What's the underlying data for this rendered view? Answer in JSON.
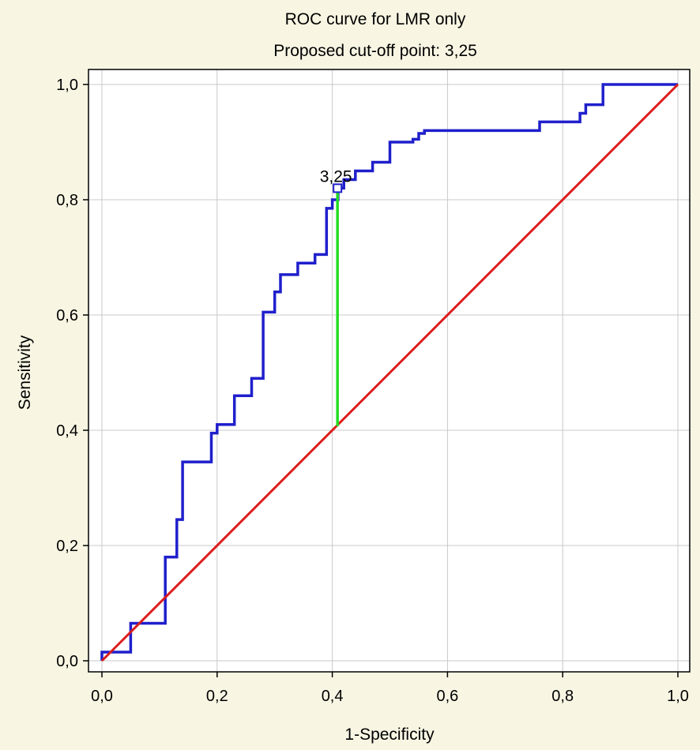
{
  "chart_data": {
    "type": "line",
    "title": "ROC curve for LMR only",
    "subtitle": "Proposed cut-off point: 3,25",
    "xlabel": "1-Specificity",
    "ylabel": "Sensitivity",
    "xlim": [
      0,
      1
    ],
    "ylim": [
      0,
      1
    ],
    "xticks": [
      0,
      0.2,
      0.4,
      0.6,
      0.8,
      1.0
    ],
    "yticks": [
      0,
      0.2,
      0.4,
      0.6,
      0.8,
      1.0
    ],
    "xtick_labels": [
      "0,0",
      "0,2",
      "0,4",
      "0,6",
      "0,8",
      "1,0"
    ],
    "ytick_labels": [
      "0,0",
      "0,2",
      "0,4",
      "0,6",
      "0,8",
      "1,0"
    ],
    "grid": true,
    "series": [
      {
        "color": "#1f1fcc",
        "x": [
          0,
          0,
          0.05,
          0.05,
          0.11,
          0.11,
          0.13,
          0.13,
          0.14,
          0.14,
          0.19,
          0.19,
          0.2,
          0.2,
          0.23,
          0.23,
          0.26,
          0.26,
          0.28,
          0.28,
          0.3,
          0.3,
          0.31,
          0.31,
          0.34,
          0.34,
          0.37,
          0.37,
          0.39,
          0.39,
          0.4,
          0.4,
          0.41,
          0.41,
          0.42,
          0.42,
          0.44,
          0.44,
          0.47,
          0.47,
          0.5,
          0.5,
          0.54,
          0.54,
          0.55,
          0.55,
          0.56,
          0.56,
          0.63,
          0.76,
          0.76,
          0.83,
          0.83,
          0.84,
          0.84,
          0.87,
          0.87,
          1.0
        ],
        "y": [
          0,
          0.015,
          0.015,
          0.065,
          0.065,
          0.18,
          0.18,
          0.245,
          0.245,
          0.345,
          0.345,
          0.395,
          0.395,
          0.41,
          0.41,
          0.46,
          0.46,
          0.49,
          0.49,
          0.605,
          0.605,
          0.64,
          0.64,
          0.67,
          0.67,
          0.69,
          0.69,
          0.705,
          0.705,
          0.785,
          0.785,
          0.8,
          0.8,
          0.82,
          0.82,
          0.835,
          0.835,
          0.85,
          0.85,
          0.865,
          0.865,
          0.9,
          0.9,
          0.905,
          0.905,
          0.915,
          0.915,
          0.92,
          0.92,
          0.92,
          0.935,
          0.935,
          0.95,
          0.95,
          0.965,
          0.965,
          1.0,
          1.0
        ]
      },
      {
        "color": "#dd1c1c",
        "x": [
          0,
          1
        ],
        "y": [
          0,
          1
        ]
      }
    ],
    "cutoff": {
      "label": "3,25",
      "x": 0.409,
      "y_roc": 0.82,
      "y_ref": 0.407,
      "line_color": "#22dd22"
    }
  }
}
